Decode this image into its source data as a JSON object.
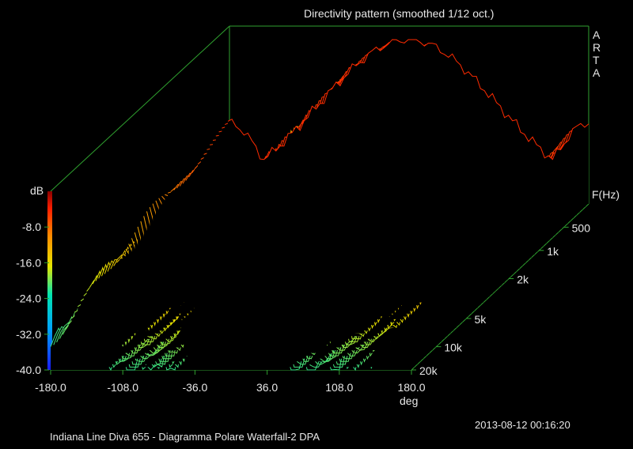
{
  "chart_data": {
    "type": "area",
    "title": "Directivity pattern (smoothed 1/12 oct.)",
    "xlabel": "deg",
    "ylabel": "F(Hz)",
    "zlabel": "dB",
    "x_ticks": [
      "-180.0",
      "-108.0",
      "-36.0",
      "36.0",
      "108.0",
      "180.0"
    ],
    "x_range": [
      -180,
      180
    ],
    "y_ticks": [
      "500",
      "1k",
      "2k",
      "5k",
      "10k",
      "20k"
    ],
    "z_ticks": [
      "-8.0",
      "-16.0",
      "-24.0",
      "-32.0",
      "-40.0"
    ],
    "z_range": [
      -40,
      0
    ],
    "colormap": [
      "#1a1aff",
      "#00bfff",
      "#00e5b0",
      "#e6e600",
      "#ff8c00",
      "#ff2000",
      "#8b0000"
    ],
    "series_count": 60,
    "peak_db_at_0deg": 0,
    "null_db": -40
  },
  "brand": "ARTA",
  "footer": {
    "caption": "Indiana Line Diva 655 - Diagramma Polare Waterfall-2     DPA",
    "timestamp": "2013-08-12  00:16:20"
  }
}
